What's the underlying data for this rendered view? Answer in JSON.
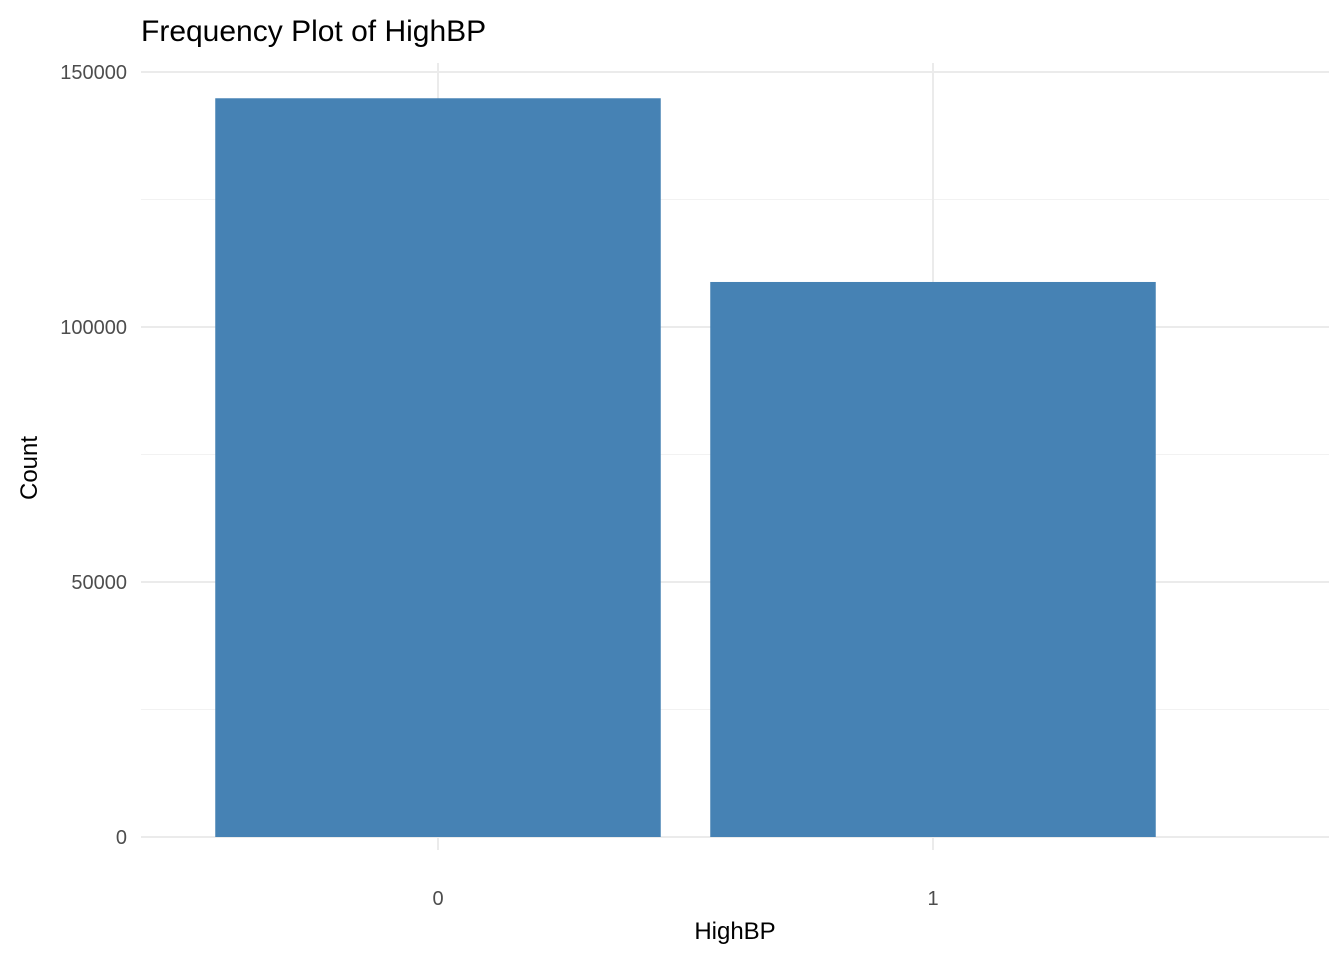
{
  "chart_data": {
    "type": "bar",
    "title": "Frequency Plot of HighBP",
    "xlabel": "HighBP",
    "ylabel": "Count",
    "categories": [
      "0",
      "1"
    ],
    "values": [
      144851,
      108829
    ],
    "ylim": [
      0,
      150000
    ],
    "yticks": [
      "0",
      "50000",
      "100000",
      "150000"
    ],
    "grid": true,
    "legend": "none",
    "bar_color": "#4682B4"
  }
}
